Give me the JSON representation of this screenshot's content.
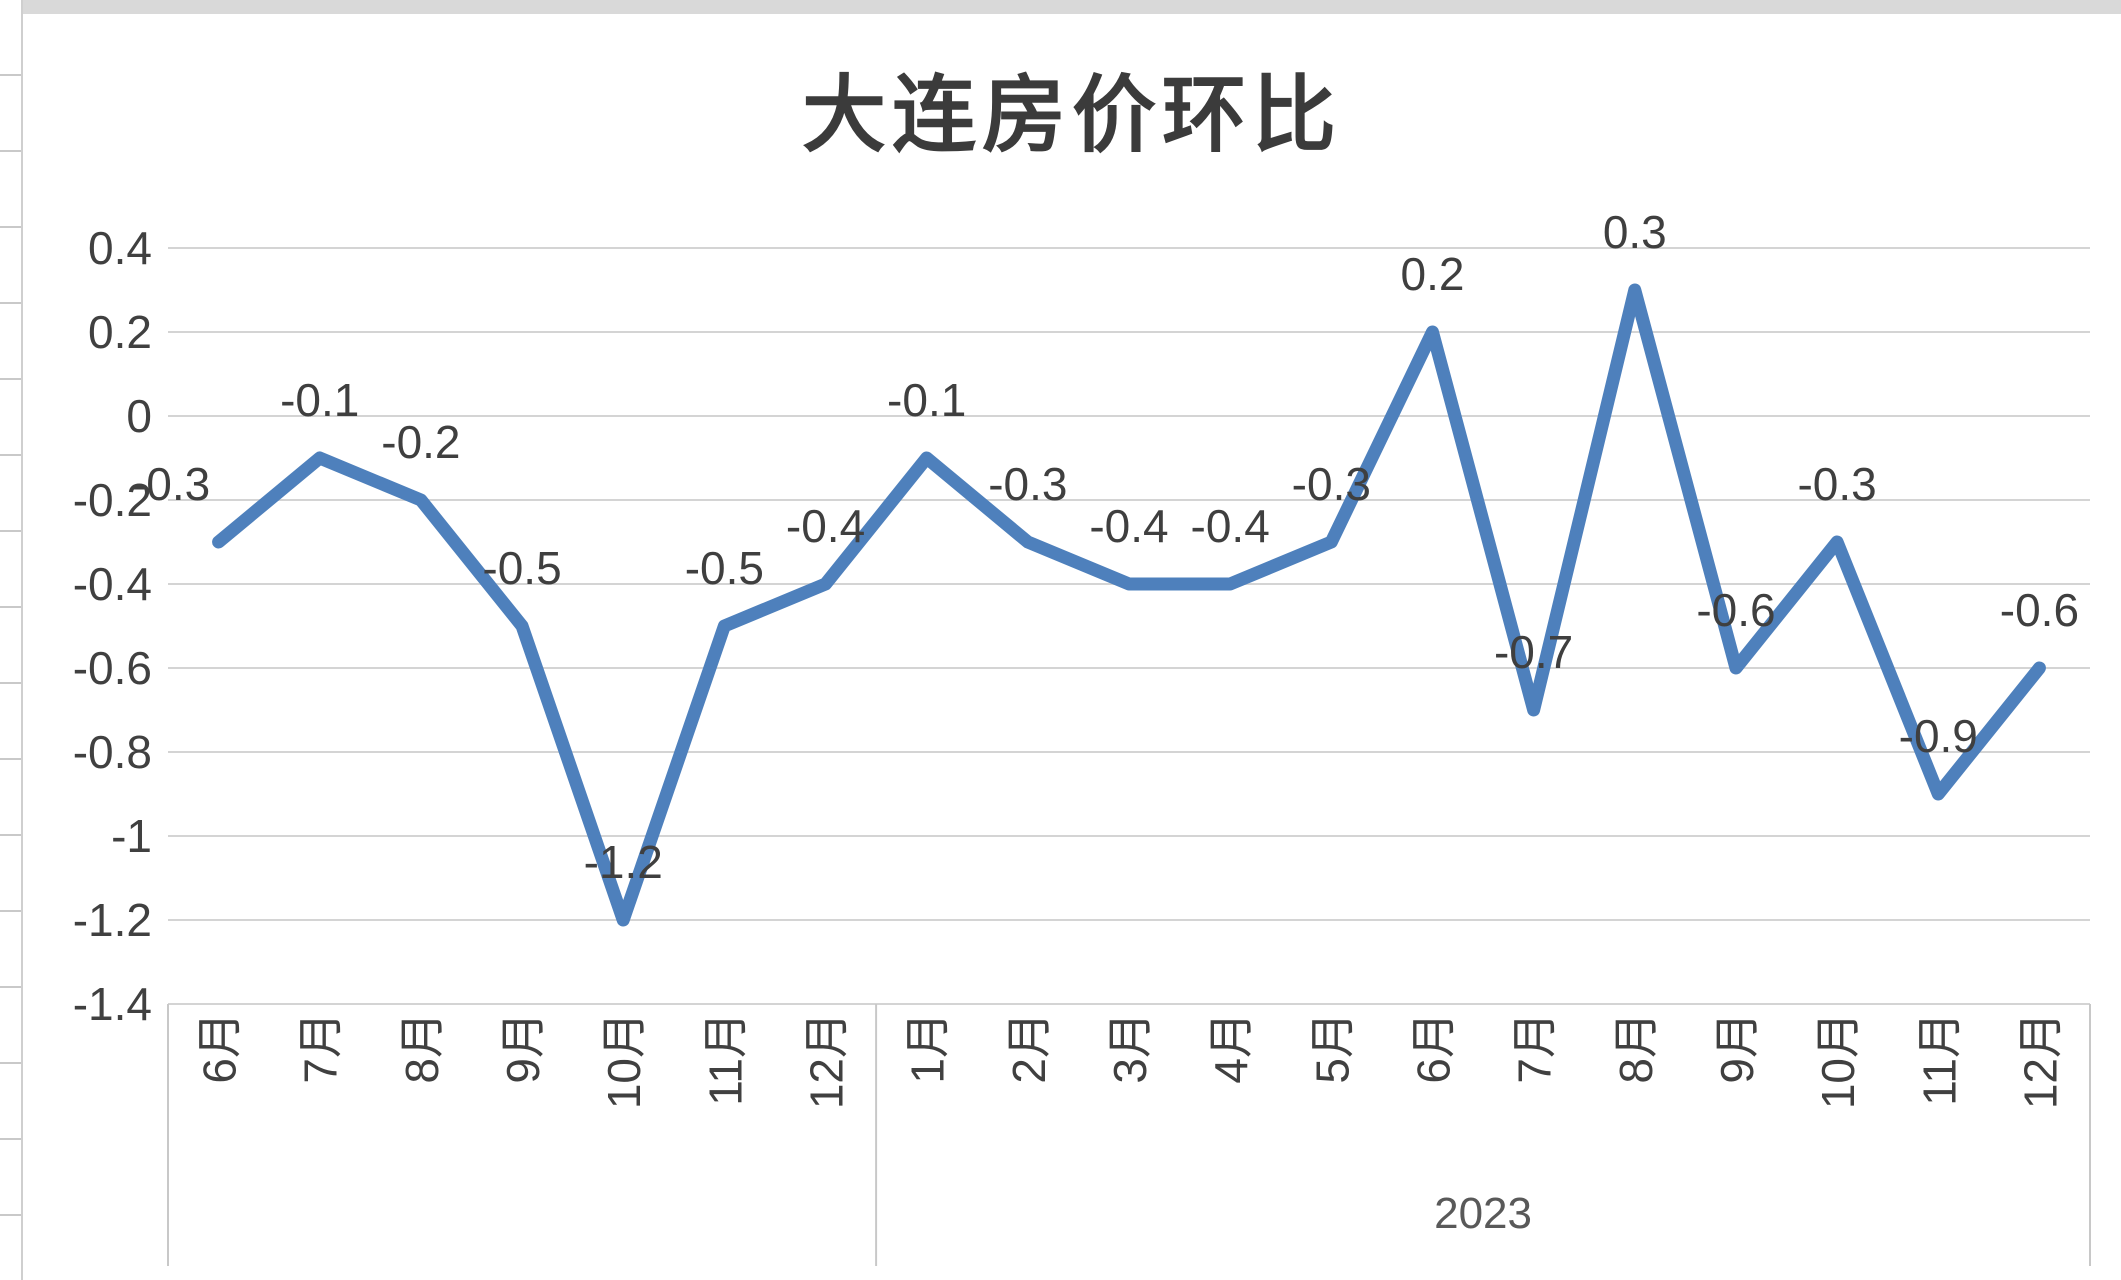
{
  "chart_data": {
    "type": "line",
    "title": "大连房价环比",
    "categories": [
      "6月",
      "7月",
      "8月",
      "9月",
      "10月",
      "11月",
      "12月",
      "1月",
      "2月",
      "3月",
      "4月",
      "5月",
      "6月",
      "7月",
      "8月",
      "9月",
      "10月",
      "11月",
      "12月"
    ],
    "values": [
      -0.3,
      -0.1,
      -0.2,
      -0.5,
      -1.2,
      -0.5,
      -0.4,
      -0.1,
      -0.3,
      -0.4,
      -0.4,
      -0.3,
      0.2,
      -0.7,
      0.3,
      -0.6,
      -0.3,
      -0.9,
      -0.6
    ],
    "data_labels": [
      "-0.3",
      "-0.1",
      "-0.2",
      "-0.5",
      "-1.2",
      "-0.5",
      "-0.4",
      "-0.1",
      "-0.3",
      "-0.4",
      "-0.4",
      "-0.3",
      "0.2",
      "-0.7",
      "0.3",
      "-0.6",
      "-0.3",
      "-0.9",
      "-0.6"
    ],
    "x_group_label": "2023",
    "x_group_start_index": 7,
    "y_ticks": [
      "0.4",
      "0.2",
      "0",
      "-0.2",
      "-0.4",
      "-0.6",
      "-0.8",
      "-1",
      "-1.2",
      "-1.4"
    ],
    "ylim": [
      -1.4,
      0.4
    ],
    "grid": true,
    "legend": "none",
    "colors": {
      "line": "#4e80bc",
      "gridline": "#d4d4d4",
      "axis_text": "#404040",
      "data_label_text": "#3f3f3f",
      "title_text": "#3b3b3b",
      "separator": "#c8c8c8",
      "top_bar": "#d9d9d9",
      "sheet_line": "#c9c9c9",
      "year_text": "#595959"
    }
  }
}
